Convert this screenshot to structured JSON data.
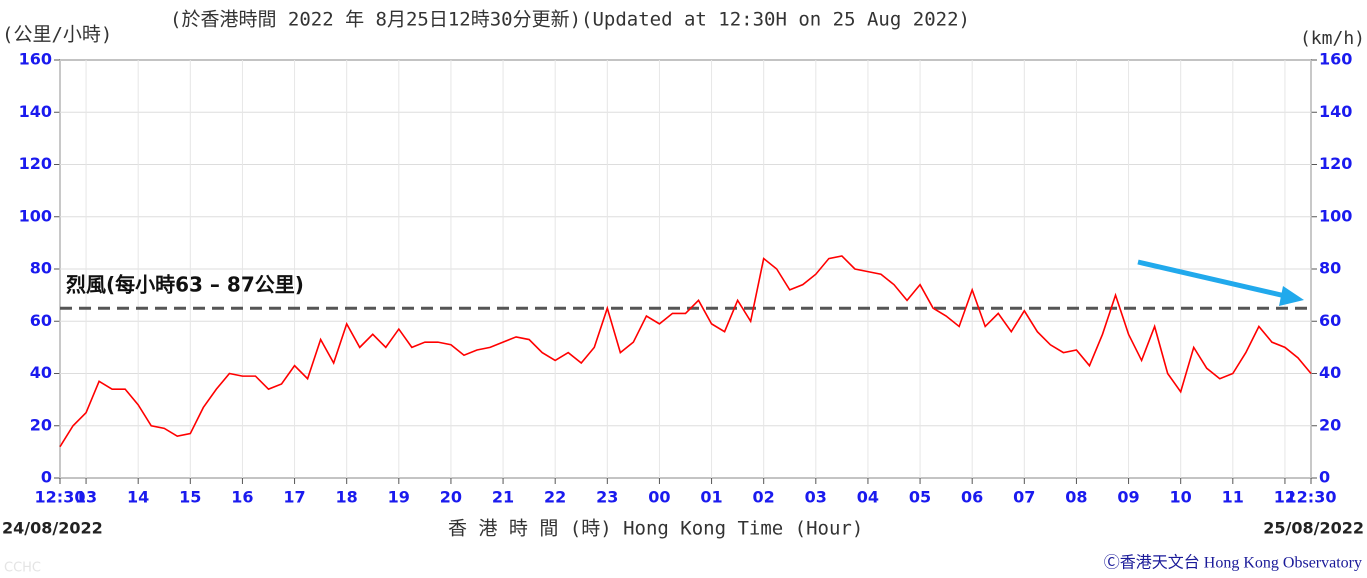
{
  "chart_data": {
    "type": "line",
    "title": "(於香港時間 2022 年 8月25日12時30分更新)(Updated at 12:30H on 25 Aug 2022)",
    "y_label": "(公里/小時)",
    "y2_label": "(km/h)",
    "x_label": "香 港 時 間 (時) Hong Kong Time (Hour)",
    "start_date": "24/08/2022",
    "end_date": "25/08/2022",
    "credit": "Ⓒ香港天文台 Hong Kong Observatory",
    "watermark": "CCHC",
    "annotation": "烈風(每小時63 – 87公里)",
    "reference_line": 65,
    "xlim": [
      0,
      24
    ],
    "xticks": [
      {
        "value": 0,
        "label": "12:30"
      },
      {
        "value": 0.5,
        "label": "13"
      },
      {
        "value": 1.5,
        "label": "14"
      },
      {
        "value": 2.5,
        "label": "15"
      },
      {
        "value": 3.5,
        "label": "16"
      },
      {
        "value": 4.5,
        "label": "17"
      },
      {
        "value": 5.5,
        "label": "18"
      },
      {
        "value": 6.5,
        "label": "19"
      },
      {
        "value": 7.5,
        "label": "20"
      },
      {
        "value": 8.5,
        "label": "21"
      },
      {
        "value": 9.5,
        "label": "22"
      },
      {
        "value": 10.5,
        "label": "23"
      },
      {
        "value": 11.5,
        "label": "00"
      },
      {
        "value": 12.5,
        "label": "01"
      },
      {
        "value": 13.5,
        "label": "02"
      },
      {
        "value": 14.5,
        "label": "03"
      },
      {
        "value": 15.5,
        "label": "04"
      },
      {
        "value": 16.5,
        "label": "05"
      },
      {
        "value": 17.5,
        "label": "06"
      },
      {
        "value": 18.5,
        "label": "07"
      },
      {
        "value": 19.5,
        "label": "08"
      },
      {
        "value": 20.5,
        "label": "09"
      },
      {
        "value": 21.5,
        "label": "10"
      },
      {
        "value": 22.5,
        "label": "11"
      },
      {
        "value": 23.5,
        "label": "12"
      },
      {
        "value": 24,
        "label": "12:30"
      }
    ],
    "ylim": [
      0,
      160
    ],
    "yticks": [
      0,
      20,
      40,
      60,
      80,
      100,
      120,
      140,
      160
    ],
    "grid": true,
    "x": [
      0,
      0.25,
      0.5,
      0.75,
      1,
      1.25,
      1.5,
      1.75,
      2,
      2.25,
      2.5,
      2.75,
      3,
      3.25,
      3.5,
      3.75,
      4,
      4.25,
      4.5,
      4.75,
      5,
      5.25,
      5.5,
      5.75,
      6,
      6.25,
      6.5,
      6.75,
      7,
      7.25,
      7.5,
      7.75,
      8,
      8.25,
      8.5,
      8.75,
      9,
      9.25,
      9.5,
      9.75,
      10,
      10.25,
      10.5,
      10.75,
      11,
      11.25,
      11.5,
      11.75,
      12,
      12.25,
      12.5,
      12.75,
      13,
      13.25,
      13.5,
      13.75,
      14,
      14.25,
      14.5,
      14.75,
      15,
      15.25,
      15.5,
      15.75,
      16,
      16.25,
      16.5,
      16.75,
      17,
      17.25,
      17.5,
      17.75,
      18,
      18.25,
      18.5,
      18.75,
      19,
      19.25,
      19.5,
      19.75,
      20,
      20.25,
      20.5,
      20.75,
      21,
      21.25,
      21.5,
      21.75,
      22,
      22.25,
      22.5,
      22.75,
      23,
      23.25,
      23.5,
      23.75,
      24
    ],
    "series": [
      {
        "color": "#ff0000",
        "values": [
          12,
          20,
          25,
          37,
          34,
          34,
          28,
          20,
          19,
          16,
          17,
          27,
          34,
          40,
          39,
          39,
          34,
          36,
          43,
          38,
          53,
          44,
          59,
          50,
          55,
          50,
          57,
          50,
          52,
          52,
          51,
          47,
          49,
          50,
          52,
          54,
          53,
          48,
          45,
          48,
          44,
          50,
          65,
          48,
          52,
          62,
          59,
          63,
          63,
          68,
          59,
          56,
          68,
          60,
          84,
          80,
          72,
          74,
          78,
          84,
          85,
          80,
          79,
          78,
          74,
          68,
          74,
          65,
          62,
          58,
          72,
          58,
          63,
          56,
          64,
          56,
          51,
          48,
          49,
          43,
          55,
          70,
          55,
          45,
          58,
          40,
          33,
          50,
          42,
          38,
          40,
          48,
          58,
          52,
          50,
          46,
          40
        ]
      }
    ]
  }
}
